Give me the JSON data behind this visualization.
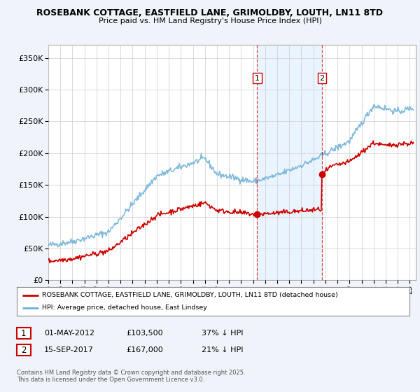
{
  "title_line1": "ROSEBANK COTTAGE, EASTFIELD LANE, GRIMOLDBY, LOUTH, LN11 8TD",
  "title_line2": "Price paid vs. HM Land Registry's House Price Index (HPI)",
  "ylabel_ticks": [
    "£0",
    "£50K",
    "£100K",
    "£150K",
    "£200K",
    "£250K",
    "£300K",
    "£350K"
  ],
  "ytick_vals": [
    0,
    50000,
    100000,
    150000,
    200000,
    250000,
    300000,
    350000
  ],
  "ylim": [
    0,
    370000
  ],
  "xlim_start": 1995.0,
  "xlim_end": 2025.5,
  "hpi_color": "#6baed6",
  "price_color": "#cc0000",
  "vline1_color": "#cc0000",
  "vline2_color": "#cc0000",
  "shade_color": "#ddeeff",
  "marker1_year": 2012.33,
  "marker2_year": 2017.71,
  "marker1_price": 103500,
  "marker2_price": 167000,
  "legend_label1": "ROSEBANK COTTAGE, EASTFIELD LANE, GRIMOLDBY, LOUTH, LN11 8TD (detached house)",
  "legend_label2": "HPI: Average price, detached house, East Lindsey",
  "footer_text": "Contains HM Land Registry data © Crown copyright and database right 2025.\nThis data is licensed under the Open Government Licence v3.0.",
  "background_color": "#f0f4fa",
  "plot_bg_color": "#ffffff"
}
